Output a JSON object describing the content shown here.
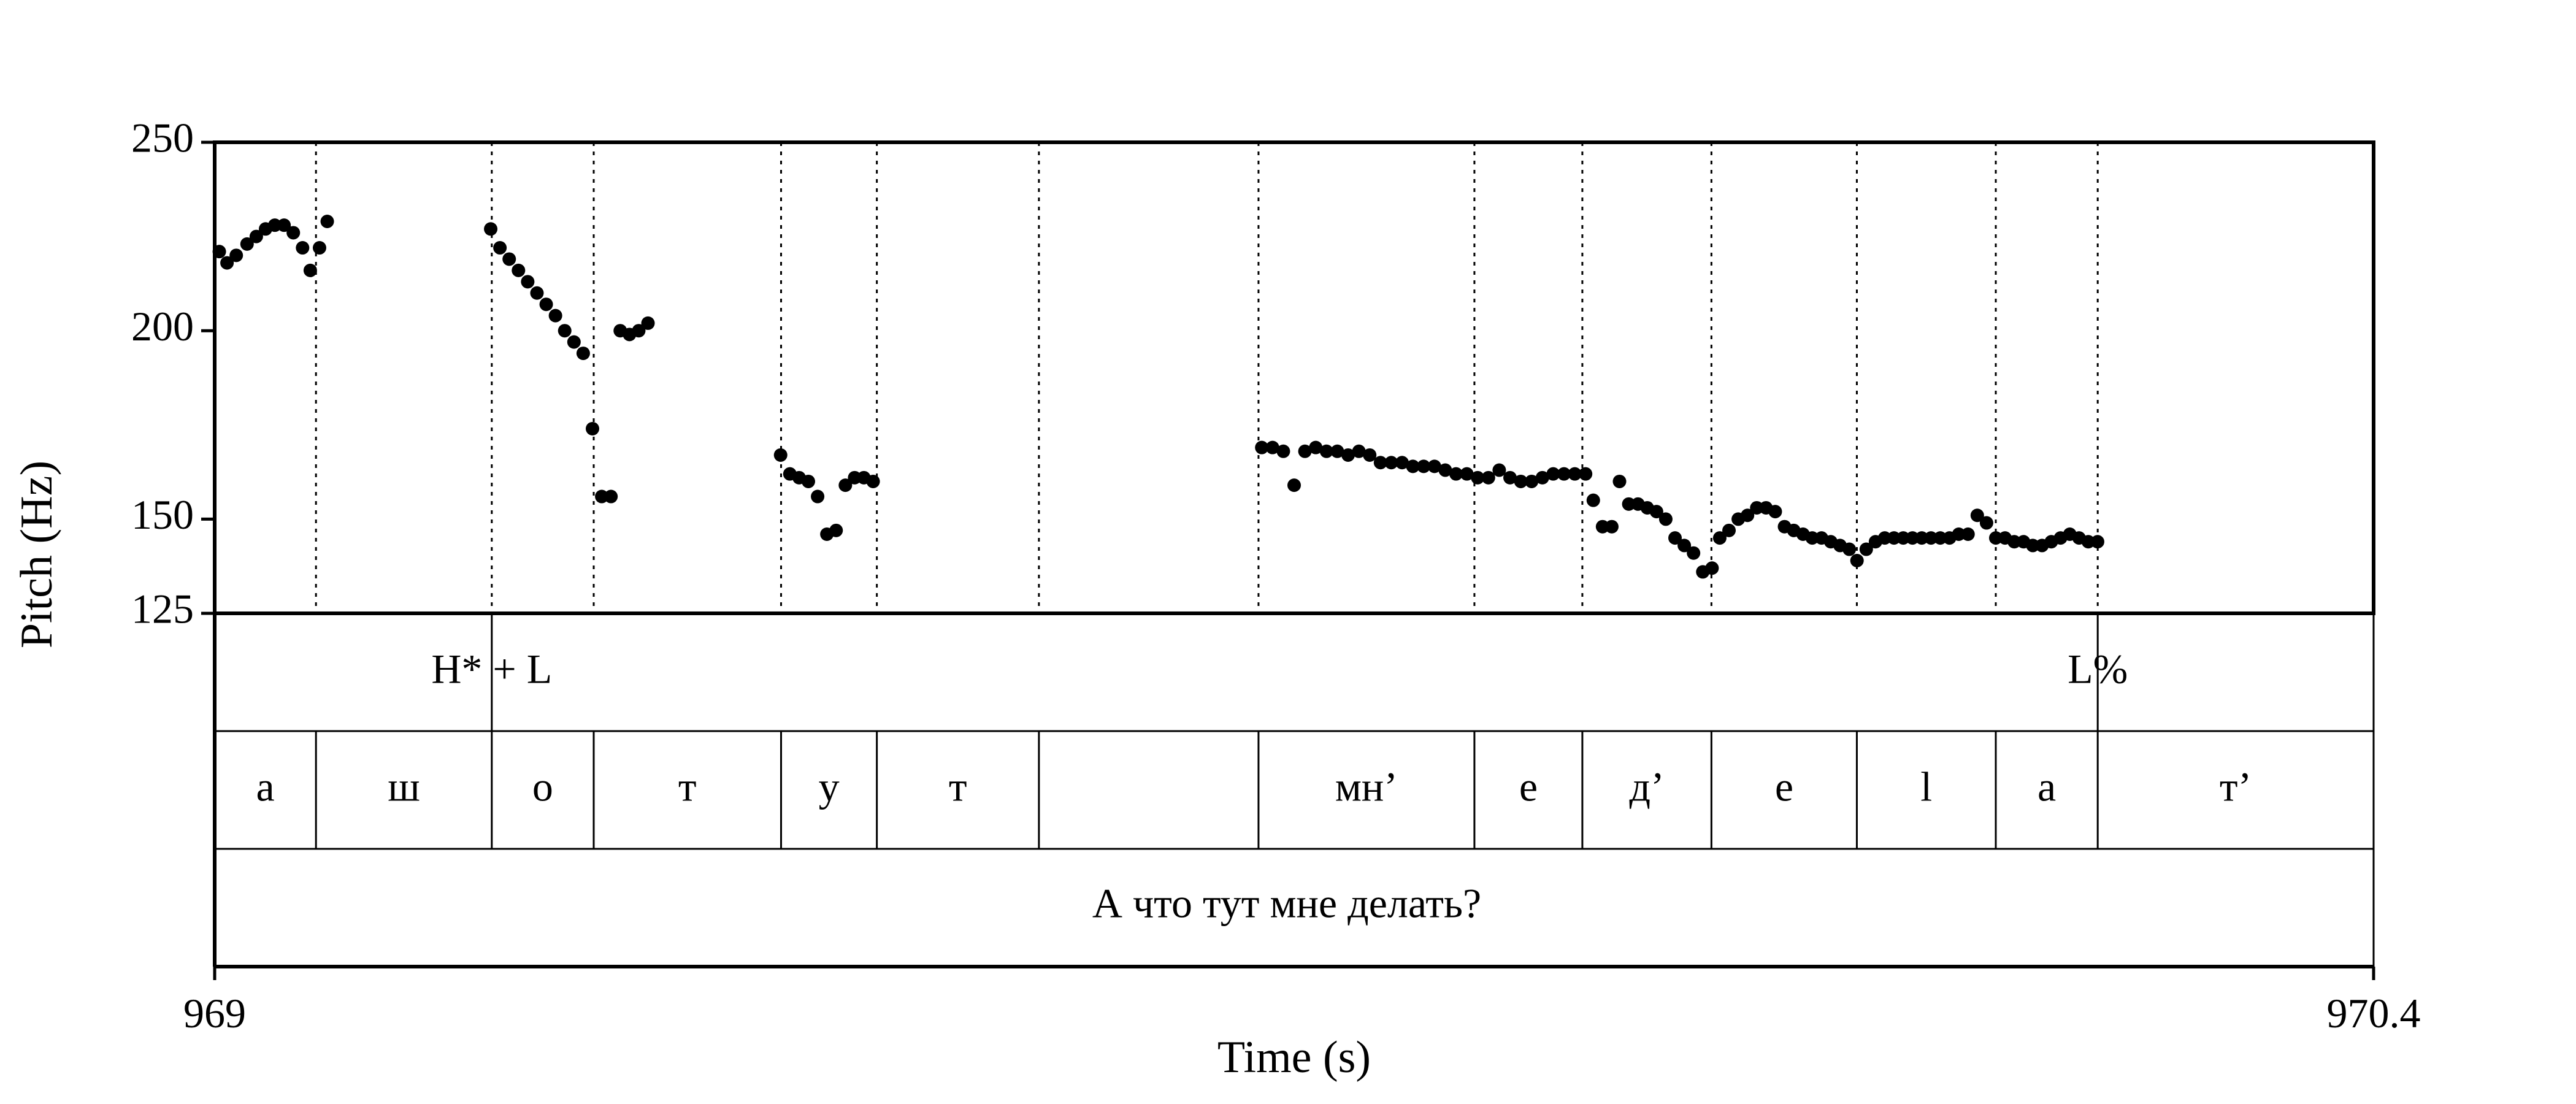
{
  "chart_data": {
    "type": "scatter",
    "xlabel": "Time (s)",
    "ylabel": "Pitch (Hz)",
    "xlim": [
      969,
      970.4
    ],
    "ylim": [
      125,
      250
    ],
    "x_tick_labels": [
      "969",
      "970.4"
    ],
    "y_ticks": [
      125,
      150,
      200,
      250
    ],
    "y_tick_labels": [
      "125",
      "150",
      "200",
      "250"
    ],
    "grid": false,
    "boundaries": [
      969.0657,
      969.1797,
      969.2458,
      969.3673,
      969.4294,
      969.5345,
      969.6769,
      969.8169,
      969.8869,
      969.9706,
      970.0649,
      970.155,
      970.2211
    ],
    "tones": [
      {
        "label": "H* + L",
        "time": 969.1797
      },
      {
        "label": "L%",
        "time": 970.2211
      }
    ],
    "segments": [
      "а",
      "ш",
      "о",
      "т",
      "у",
      "т",
      "",
      "мн’",
      "е",
      "д’",
      "е",
      "l",
      "а",
      "т’"
    ],
    "sentence": "А что тут мне делать?",
    "series": [
      {
        "points": [
          [
            969.003,
            221
          ],
          [
            969.008,
            218
          ],
          [
            969.014,
            220
          ],
          [
            969.021,
            223
          ],
          [
            969.027,
            225
          ],
          [
            969.033,
            227
          ],
          [
            969.039,
            228
          ],
          [
            969.045,
            228
          ],
          [
            969.051,
            226
          ],
          [
            969.057,
            222
          ],
          [
            969.062,
            216
          ],
          [
            969.068,
            222
          ],
          [
            969.073,
            229
          ],
          [
            969.179,
            227
          ],
          [
            969.185,
            222
          ],
          [
            969.191,
            219
          ],
          [
            969.197,
            216
          ],
          [
            969.203,
            213
          ],
          [
            969.209,
            210
          ],
          [
            969.215,
            207
          ],
          [
            969.221,
            204
          ],
          [
            969.227,
            200
          ],
          [
            969.233,
            197
          ],
          [
            969.239,
            194
          ],
          [
            969.245,
            174
          ],
          [
            969.251,
            156
          ],
          [
            969.257,
            156
          ],
          [
            969.263,
            200
          ],
          [
            969.269,
            199
          ],
          [
            969.275,
            200
          ],
          [
            969.281,
            202
          ],
          [
            969.367,
            167
          ],
          [
            969.373,
            162
          ],
          [
            969.379,
            161
          ],
          [
            969.385,
            160
          ],
          [
            969.391,
            156
          ],
          [
            969.397,
            146
          ],
          [
            969.403,
            147
          ],
          [
            969.409,
            159
          ],
          [
            969.415,
            161
          ],
          [
            969.421,
            161
          ],
          [
            969.427,
            160
          ],
          [
            969.679,
            169
          ],
          [
            969.686,
            169
          ],
          [
            969.693,
            168
          ],
          [
            969.7,
            159
          ],
          [
            969.707,
            168
          ],
          [
            969.714,
            169
          ],
          [
            969.721,
            168
          ],
          [
            969.728,
            168
          ],
          [
            969.735,
            167
          ],
          [
            969.742,
            168
          ],
          [
            969.749,
            167
          ],
          [
            969.756,
            165
          ],
          [
            969.763,
            165
          ],
          [
            969.77,
            165
          ],
          [
            969.777,
            164
          ],
          [
            969.784,
            164
          ],
          [
            969.791,
            164
          ],
          [
            969.798,
            163
          ],
          [
            969.805,
            162
          ],
          [
            969.812,
            162
          ],
          [
            969.819,
            161
          ],
          [
            969.826,
            161
          ],
          [
            969.833,
            163
          ],
          [
            969.84,
            161
          ],
          [
            969.847,
            160
          ],
          [
            969.854,
            160
          ],
          [
            969.861,
            161
          ],
          [
            969.868,
            162
          ],
          [
            969.875,
            162
          ],
          [
            969.882,
            162
          ],
          [
            969.889,
            162
          ],
          [
            969.894,
            155
          ],
          [
            969.9,
            148
          ],
          [
            969.906,
            148
          ],
          [
            969.911,
            160
          ],
          [
            969.917,
            154
          ],
          [
            969.923,
            154
          ],
          [
            969.929,
            153
          ],
          [
            969.935,
            152
          ],
          [
            969.941,
            150
          ],
          [
            969.947,
            145
          ],
          [
            969.953,
            143
          ],
          [
            969.959,
            141
          ],
          [
            969.965,
            136
          ],
          [
            969.971,
            137
          ],
          [
            969.976,
            145
          ],
          [
            969.982,
            147
          ],
          [
            969.988,
            150
          ],
          [
            969.994,
            151
          ],
          [
            970.0,
            153
          ],
          [
            970.006,
            153
          ],
          [
            970.012,
            152
          ],
          [
            970.018,
            148
          ],
          [
            970.024,
            147
          ],
          [
            970.03,
            146
          ],
          [
            970.036,
            145
          ],
          [
            970.042,
            145
          ],
          [
            970.048,
            144
          ],
          [
            970.054,
            143
          ],
          [
            970.06,
            142
          ],
          [
            970.065,
            139
          ],
          [
            970.071,
            142
          ],
          [
            970.077,
            144
          ],
          [
            970.083,
            145
          ],
          [
            970.089,
            145
          ],
          [
            970.095,
            145
          ],
          [
            970.101,
            145
          ],
          [
            970.107,
            145
          ],
          [
            970.113,
            145
          ],
          [
            970.119,
            145
          ],
          [
            970.125,
            145
          ],
          [
            970.131,
            146
          ],
          [
            970.137,
            146
          ],
          [
            970.143,
            151
          ],
          [
            970.149,
            149
          ],
          [
            970.155,
            145
          ],
          [
            970.161,
            145
          ],
          [
            970.167,
            144
          ],
          [
            970.173,
            144
          ],
          [
            970.179,
            143
          ],
          [
            970.185,
            143
          ],
          [
            970.191,
            144
          ],
          [
            970.197,
            145
          ],
          [
            970.203,
            146
          ],
          [
            970.209,
            145
          ],
          [
            970.215,
            144
          ],
          [
            970.221,
            144
          ]
        ]
      }
    ]
  }
}
